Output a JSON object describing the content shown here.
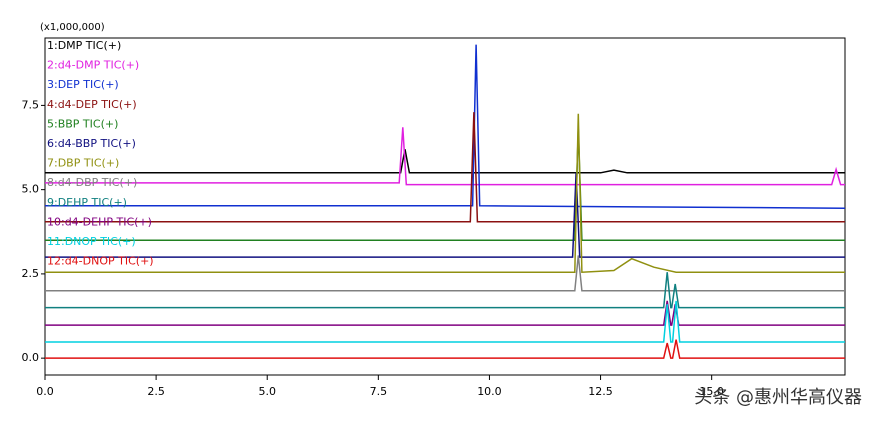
{
  "chart_data": {
    "type": "line",
    "y_multiplier_label": "(x1,000,000)",
    "xlim": [
      0,
      18
    ],
    "ylim": [
      -0.5,
      9.5
    ],
    "xticks": [
      {
        "value": 0,
        "label": "0.0"
      },
      {
        "value": 2.5,
        "label": "2.5"
      },
      {
        "value": 5,
        "label": "5.0"
      },
      {
        "value": 7.5,
        "label": "7.5"
      },
      {
        "value": 10,
        "label": "10.0"
      },
      {
        "value": 12.5,
        "label": "12.5"
      },
      {
        "value": 15,
        "label": "15.0"
      }
    ],
    "yticks": [
      {
        "value": 0,
        "label": "0.0"
      },
      {
        "value": 2.5,
        "label": "2.5"
      },
      {
        "value": 5,
        "label": "5.0"
      },
      {
        "value": 7.5,
        "label": "7.5"
      }
    ],
    "legend": "top-left",
    "series": [
      {
        "name": "1:DMP TIC(+)",
        "color": "#000000",
        "x": [
          0,
          8.0,
          8.1,
          8.2,
          12.5,
          12.8,
          13.1,
          18
        ],
        "values": [
          5.5,
          5.5,
          6.2,
          5.5,
          5.5,
          5.58,
          5.5,
          5.5
        ]
      },
      {
        "name": "2:d4-DMP TIC(+)",
        "color": "#e020e0",
        "x": [
          0,
          7.97,
          8.05,
          8.13,
          17.7,
          17.8,
          17.9,
          18
        ],
        "values": [
          5.2,
          5.2,
          6.85,
          5.15,
          5.15,
          5.6,
          5.15,
          5.15
        ]
      },
      {
        "name": "3:DEP TIC(+)",
        "color": "#1030d0",
        "x": [
          0,
          9.62,
          9.7,
          9.78,
          18
        ],
        "values": [
          4.52,
          4.52,
          9.3,
          4.52,
          4.45
        ]
      },
      {
        "name": "4:d4-DEP TIC(+)",
        "color": "#8b1010",
        "x": [
          0,
          9.57,
          9.65,
          9.73,
          18
        ],
        "values": [
          4.05,
          4.05,
          7.3,
          4.05,
          4.05
        ]
      },
      {
        "name": "5:BBP TIC(+)",
        "color": "#208020",
        "x": [
          0,
          11.92,
          12.0,
          12.08,
          18
        ],
        "values": [
          3.5,
          3.5,
          6.8,
          3.5,
          3.5
        ]
      },
      {
        "name": "6:d4-BBP TIC(+)",
        "color": "#101080",
        "x": [
          0,
          11.87,
          11.95,
          12.03,
          18
        ],
        "values": [
          3.0,
          3.0,
          5.5,
          3.0,
          3.0
        ]
      },
      {
        "name": "7:DBP TIC(+)",
        "color": "#909010",
        "x": [
          0,
          11.92,
          12.0,
          12.08,
          12.8,
          13.2,
          13.7,
          14.2,
          18
        ],
        "values": [
          2.55,
          2.55,
          7.25,
          2.55,
          2.6,
          2.95,
          2.7,
          2.55,
          2.55
        ]
      },
      {
        "name": "8:d4-DBP TIC(+)",
        "color": "#808080",
        "x": [
          0,
          11.92,
          12.0,
          12.08,
          18
        ],
        "values": [
          2.0,
          2.0,
          3.05,
          2.0,
          2.0
        ]
      },
      {
        "name": "9:DEHP TIC(+)",
        "color": "#108080",
        "x": [
          0,
          13.92,
          14.0,
          14.08,
          14.1,
          14.18,
          14.26,
          18
        ],
        "values": [
          1.5,
          1.5,
          2.55,
          1.5,
          1.5,
          2.2,
          1.5,
          1.5
        ]
      },
      {
        "name": "10:d4-DEHP TIC(+)",
        "color": "#800080",
        "x": [
          0,
          13.92,
          14.0,
          14.08,
          14.1,
          14.18,
          14.26,
          18
        ],
        "values": [
          0.98,
          0.98,
          1.7,
          0.98,
          0.98,
          1.6,
          0.98,
          0.98
        ]
      },
      {
        "name": "11:DNOP TIC(+)",
        "color": "#00d0e0",
        "x": [
          0,
          13.92,
          14.0,
          14.08,
          14.12,
          14.2,
          14.28,
          18
        ],
        "values": [
          0.48,
          0.48,
          1.6,
          0.48,
          0.48,
          1.7,
          0.48,
          0.48
        ]
      },
      {
        "name": "12:d4-DNOP TIC(+)",
        "color": "#e01010",
        "x": [
          0,
          13.92,
          14.0,
          14.08,
          14.12,
          14.2,
          14.28,
          18
        ],
        "values": [
          0.0,
          0.0,
          0.45,
          0.0,
          0.0,
          0.55,
          0.0,
          0.0
        ]
      }
    ]
  },
  "watermark": "头条 @惠州华高仪器"
}
